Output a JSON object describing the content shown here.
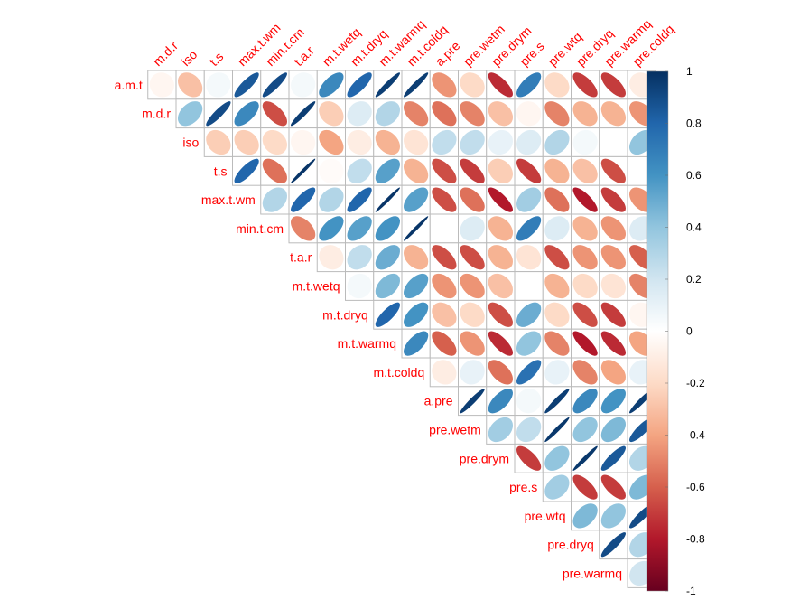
{
  "chart_data": {
    "type": "heatmap",
    "method": "ellipse",
    "layout": "upper-triangle",
    "variables": [
      "a.m.t",
      "m.d.r",
      "iso",
      "t.s",
      "max.t.wm",
      "min.t.cm",
      "t.a.r",
      "m.t.wetq",
      "m.t.dryq",
      "m.t.warmq",
      "m.t.coldq",
      "a.pre",
      "pre.wetm",
      "pre.drym",
      "pre.s",
      "pre.wtq",
      "pre.dryq",
      "pre.warmq",
      "pre.coldq"
    ],
    "row_labels": [
      "a.m.t",
      "m.d.r",
      "iso",
      "t.s",
      "max.t.wm",
      "min.t.cm",
      "t.a.r",
      "m.t.wetq",
      "m.t.dryq",
      "m.t.warmq",
      "m.t.coldq",
      "a.pre",
      "pre.wetm",
      "pre.drym",
      "pre.s",
      "pre.wtq",
      "pre.dryq",
      "pre.warmq"
    ],
    "col_labels": [
      "m.d.r",
      "iso",
      "t.s",
      "max.t.wm",
      "min.t.cm",
      "t.a.r",
      "m.t.wetq",
      "m.t.dryq",
      "m.t.warmq",
      "m.t.coldq",
      "a.pre",
      "pre.wetm",
      "pre.drym",
      "pre.s",
      "pre.wtq",
      "pre.dryq",
      "pre.warmq",
      "pre.coldq"
    ],
    "matrix": [
      [
        -0.05,
        -0.3,
        0.05,
        0.85,
        0.9,
        0.05,
        0.65,
        0.8,
        0.95,
        0.95,
        -0.45,
        -0.2,
        -0.75,
        0.7,
        -0.2,
        -0.7,
        -0.7,
        -0.1
      ],
      [
        0.4,
        0.9,
        0.65,
        -0.65,
        0.95,
        -0.25,
        0.15,
        0.3,
        -0.5,
        -0.55,
        -0.5,
        -0.3,
        -0.05,
        -0.5,
        -0.35,
        -0.35,
        -0.45
      ],
      [
        -0.25,
        -0.25,
        -0.2,
        -0.05,
        -0.4,
        -0.1,
        -0.35,
        -0.15,
        0.25,
        0.25,
        0.1,
        0.15,
        0.3,
        0.05,
        0.0,
        0.4
      ],
      [
        0.8,
        -0.55,
        0.98,
        -0.02,
        0.25,
        0.55,
        -0.35,
        -0.65,
        -0.7,
        -0.25,
        -0.7,
        -0.35,
        -0.3,
        -0.65
      ],
      [
        0.3,
        0.8,
        0.3,
        0.8,
        0.98,
        0.55,
        -0.65,
        -0.55,
        -0.8,
        0.35,
        -0.55,
        -0.8,
        -0.7,
        -0.45
      ],
      [
        -0.5,
        0.6,
        0.55,
        0.6,
        0.98,
        0.0,
        0.15,
        -0.35,
        0.7,
        0.15,
        -0.35,
        -0.45,
        0.15
      ],
      [
        -0.1,
        0.25,
        0.5,
        -0.35,
        -0.65,
        -0.65,
        -0.35,
        -0.15,
        -0.65,
        -0.45,
        -0.45,
        -0.6
      ],
      [
        0.05,
        0.45,
        0.55,
        -0.45,
        -0.45,
        -0.3,
        0.0,
        -0.35,
        -0.2,
        -0.15,
        -0.5
      ],
      [
        0.8,
        0.6,
        -0.3,
        -0.2,
        -0.65,
        0.5,
        -0.2,
        -0.65,
        -0.7,
        -0.05
      ],
      [
        0.65,
        -0.6,
        -0.45,
        -0.75,
        0.4,
        -0.5,
        -0.8,
        -0.75,
        -0.4
      ],
      [
        -0.1,
        0.1,
        -0.55,
        0.75,
        0.1,
        -0.5,
        -0.4,
        0.1
      ],
      [
        0.95,
        0.65,
        0.05,
        0.95,
        0.65,
        0.6,
        0.95
      ],
      [
        0.35,
        0.25,
        0.97,
        0.4,
        0.45,
        0.85
      ],
      [
        -0.7,
        0.4,
        0.97,
        0.85,
        0.3
      ],
      [
        0.35,
        -0.7,
        -0.7,
        0.45
      ],
      [
        0.45,
        0.4,
        0.9
      ],
      [
        0.9,
        0.3
      ],
      [
        0.2
      ]
    ],
    "colorbar": {
      "range": [
        -1,
        1
      ],
      "ticks": [
        "1",
        "0.8",
        "0.6",
        "0.4",
        "0.2",
        "0",
        "-0.2",
        "-0.4",
        "-0.6",
        "-0.8",
        "-1"
      ],
      "palette": [
        "#67001F",
        "#B2182B",
        "#D6604D",
        "#F4A582",
        "#FDDBC7",
        "#FFFFFF",
        "#D1E5F0",
        "#92C5DE",
        "#4393C3",
        "#2166AC",
        "#053061"
      ]
    },
    "label_color": "#FF0000",
    "grid_color": "#BBBBBB"
  }
}
